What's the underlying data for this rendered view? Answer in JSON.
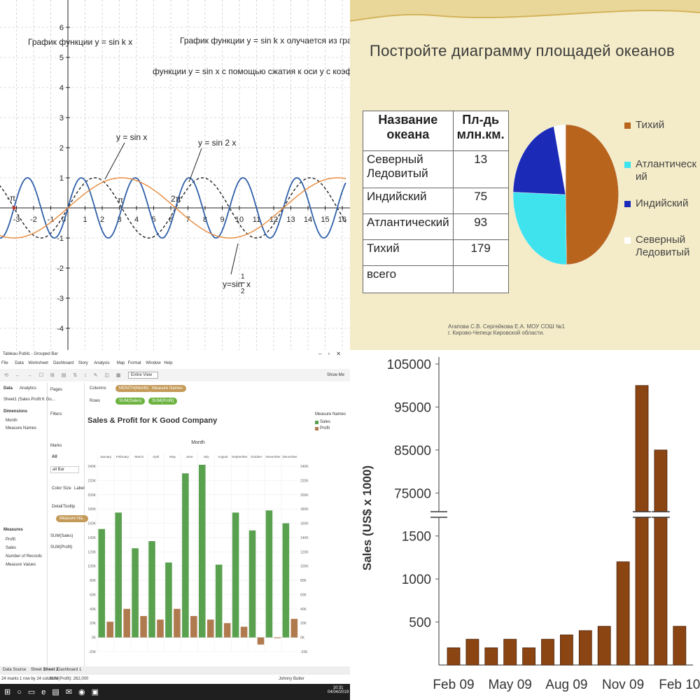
{
  "q1": {
    "title_left": "График  функции y = sin k x",
    "title_right": "График функции y = sin k x   олучается  из графика",
    "subtitle": "функции y = sin x  с помощью сжатия к оси y с коэффициентом k",
    "x_ticks": [
      "-3",
      "-2",
      "-1",
      "0",
      "1",
      "2",
      "3",
      "4",
      "5",
      "6",
      "7",
      "8",
      "9",
      "10",
      "11",
      "12",
      "13",
      "14",
      "15",
      "16"
    ],
    "y_ticks": [
      "6",
      "5",
      "4",
      "3",
      "2",
      "1",
      "-1",
      "-2",
      "-3",
      "-4"
    ],
    "pi_labels": [
      "-π",
      "π",
      "2π"
    ],
    "annotations": {
      "sinx": "y = sin x",
      "sin2x": "y = sin 2 x",
      "sinhalf": "y=sin",
      "one": "1",
      "two": "2",
      "x": "x"
    },
    "colors": {
      "sinx": "#222222",
      "sin2x": "#2f5fa8",
      "sinhalf": "#e8893a"
    }
  },
  "q2": {
    "title": "Постройте диаграмму площадей океанов",
    "table_header": [
      "Название океана",
      "Пл-дь млн.км."
    ],
    "rows": [
      {
        "name": "Северный Ледовитый",
        "value": "13"
      },
      {
        "name": "Индийский",
        "value": "75"
      },
      {
        "name": "Атлантический",
        "value": "93"
      },
      {
        "name": "Тихий",
        "value": "179"
      },
      {
        "name": "всего",
        "value": ""
      }
    ],
    "legend": [
      "Тихий",
      "Атлантический",
      "Индийский",
      "Северный Ледовитый"
    ],
    "credit1": "Агапова С.В. Сергейкова Е.А.   МОУ СОШ №1",
    "credit2": "г. Кирово-Чепецк Кировской области.",
    "colors": [
      "#b8641c",
      "#3fe3ee",
      "#1b2bb8",
      "#ffffff"
    ]
  },
  "q3": {
    "window_title": "Tableau Public - Grouped Bar",
    "menu": [
      "File",
      "Data",
      "Worksheet",
      "Dashboard",
      "Story",
      "Analysis",
      "Map",
      "Format",
      "Window",
      "Help"
    ],
    "view_mode": "Entire View",
    "show_me": "Show Me",
    "side_tabs": [
      "Data",
      "Analytics"
    ],
    "source": "Sheet1 (Sales Profit K Go...",
    "dimensions_label": "Dimensions",
    "dimensions": [
      "Month",
      "Measure Names"
    ],
    "measures_label": "Measures",
    "measures": [
      "Profit",
      "Sales",
      "Number of Records",
      "Measure Values"
    ],
    "pages": "Pages",
    "filters": "Filters",
    "marks": "Marks",
    "marks_all": "All",
    "marks_type": "all Bar",
    "mark_buttons": [
      "Color",
      "Size",
      "Label",
      "Detail",
      "Tooltip"
    ],
    "measure_names_pill": "Measure Na..",
    "sum_sales": "SUM(Sales)",
    "sum_profit": "SUM(Profit)",
    "columns_label": "Columns",
    "rows_label": "Rows",
    "columns_pills": [
      "MONTH(Month)",
      "Measure Names"
    ],
    "rows_pills": [
      "SUM(Sales)",
      "SUM(Profit)"
    ],
    "legend_title": "Measure Names",
    "legend_items": [
      "Sales",
      "Profit"
    ],
    "sheet_tabs": [
      "Data Source",
      "Sheet 1",
      "Sheet 2",
      "Dashboard 1"
    ],
    "status_left": "24 marks",
    "status_mid": "1 row by 24 columns",
    "status_sum": "SUM(Profit): 262,000",
    "user": "Johnny Butler",
    "time": "10:31",
    "date": "04/04/2019"
  },
  "chart_data": [
    {
      "type": "line",
      "title": "График  функции y = sin k x",
      "x": [
        -3.1416,
        0,
        3.1416,
        6.2832
      ],
      "xlim": [
        -4,
        16
      ],
      "ylim": [
        -5,
        7
      ],
      "grid": true,
      "series": [
        {
          "name": "y = sin x",
          "formula": "sin(x)",
          "style": "dashed"
        },
        {
          "name": "y = sin 2 x",
          "formula": "sin(2x)",
          "style": "solid"
        },
        {
          "name": "y=sin 1/2 x",
          "formula": "sin(x/2)",
          "style": "solid"
        }
      ]
    },
    {
      "type": "pie",
      "categories": [
        "Тихий",
        "Атлантический",
        "Индийский",
        "Северный Ледовитый"
      ],
      "values": [
        179,
        93,
        75,
        13
      ]
    },
    {
      "type": "bar",
      "title": "Sales & Profit for K Good Company",
      "xlabel": "Month",
      "categories": [
        "January",
        "February",
        "March",
        "April",
        "May",
        "June",
        "July",
        "August",
        "September",
        "October",
        "November",
        "December"
      ],
      "series": [
        {
          "name": "Sales",
          "values": [
            152000,
            175000,
            125000,
            135000,
            105000,
            230000,
            242000,
            102000,
            175000,
            150000,
            178000,
            160000
          ]
        },
        {
          "name": "Profit",
          "values": [
            22000,
            40000,
            30000,
            25000,
            40000,
            30000,
            25000,
            20000,
            15000,
            -10000,
            -1000,
            26000
          ]
        }
      ],
      "ylim": [
        -20000,
        240000
      ],
      "y_ticks": [
        "240K",
        "220K",
        "200K",
        "180K",
        "160K",
        "140K",
        "120K",
        "100K",
        "80K",
        "60K",
        "40K",
        "20K",
        "0K",
        "-20K"
      ]
    },
    {
      "type": "bar",
      "ylabel": "Sales (US$ x 1000)",
      "x_tick_labels": [
        "Feb 09",
        "May 09",
        "Aug 09",
        "Nov 09",
        "Feb 10"
      ],
      "values": [
        200,
        300,
        200,
        300,
        200,
        300,
        350,
        400,
        450,
        1200,
        100000,
        85000,
        450
      ],
      "axis_break": [
        1750,
        70000
      ],
      "y_ticks_lower": [
        "500",
        "1000",
        "1500"
      ],
      "y_ticks_upper": [
        "75000",
        "85000",
        "95000",
        "105000"
      ]
    }
  ]
}
